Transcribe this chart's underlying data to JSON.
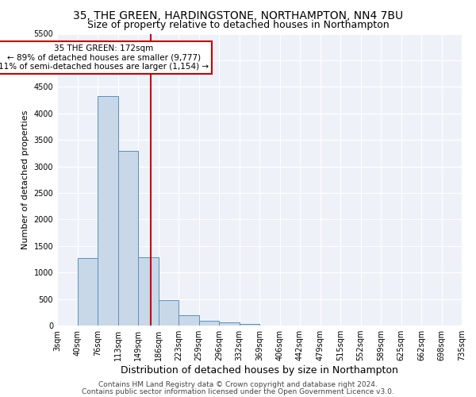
{
  "title1": "35, THE GREEN, HARDINGSTONE, NORTHAMPTON, NN4 7BU",
  "title2": "Size of property relative to detached houses in Northampton",
  "xlabel": "Distribution of detached houses by size in Northampton",
  "ylabel": "Number of detached properties",
  "bin_labels": [
    "3sqm",
    "40sqm",
    "76sqm",
    "113sqm",
    "149sqm",
    "186sqm",
    "223sqm",
    "259sqm",
    "296sqm",
    "332sqm",
    "369sqm",
    "406sqm",
    "442sqm",
    "479sqm",
    "515sqm",
    "552sqm",
    "589sqm",
    "625sqm",
    "662sqm",
    "698sqm",
    "735sqm"
  ],
  "bar_values": [
    0,
    1270,
    4330,
    3300,
    1290,
    480,
    200,
    95,
    55,
    25,
    5,
    0,
    0,
    0,
    0,
    0,
    0,
    0,
    0,
    0
  ],
  "bar_color": "#c8d8e8",
  "bar_edge_color": "#5a8fc2",
  "red_line_x": 4.62,
  "red_line_color": "#cc0000",
  "annotation_text": "35 THE GREEN: 172sqm\n← 89% of detached houses are smaller (9,777)\n11% of semi-detached houses are larger (1,154) →",
  "annotation_box_color": "#ffffff",
  "annotation_box_edge": "#cc0000",
  "ylim": [
    0,
    5500
  ],
  "yticks": [
    0,
    500,
    1000,
    1500,
    2000,
    2500,
    3000,
    3500,
    4000,
    4500,
    5000,
    5500
  ],
  "footnote1": "Contains HM Land Registry data © Crown copyright and database right 2024.",
  "footnote2": "Contains public sector information licensed under the Open Government Licence v3.0.",
  "background_color": "#ffffff",
  "plot_bg_color": "#eef2f8",
  "grid_color": "#ffffff",
  "title1_fontsize": 10,
  "title2_fontsize": 9,
  "xlabel_fontsize": 9,
  "ylabel_fontsize": 8,
  "tick_fontsize": 7,
  "footnote_fontsize": 6.5,
  "annot_fontsize": 7.5
}
